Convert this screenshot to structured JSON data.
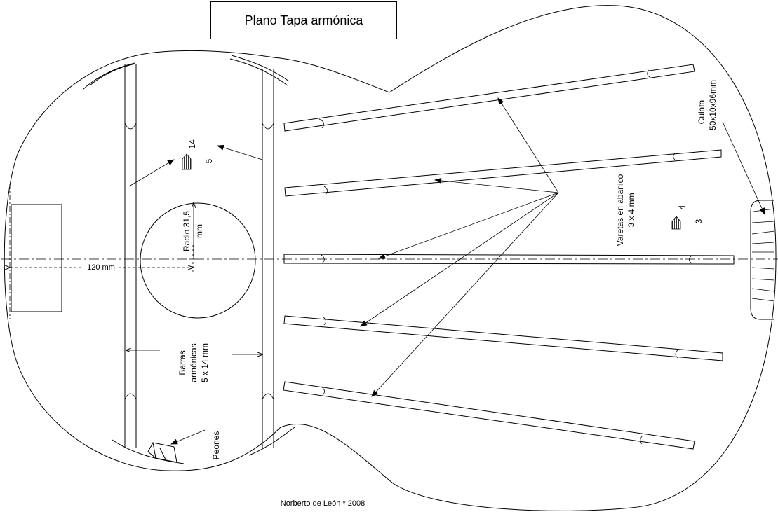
{
  "title": "Plano Tapa armónica",
  "labels": {
    "radius": "Radio 31,5",
    "radius_unit": "mm",
    "length": "120 mm",
    "bars_1": "Barras",
    "bars_2": "armónicas",
    "bars_3": "5 x 14 mm",
    "fan_1": "Varetas en abanico",
    "fan_2": "3 x 4 mm",
    "heel_1": "Culata",
    "heel_2": "50x10x96mm",
    "pins": "Peones",
    "bar_section_h": "14",
    "bar_section_w": "5",
    "fan_section_h": "4",
    "fan_section_w": "3"
  },
  "footer": "Norberto de León * 2008"
}
